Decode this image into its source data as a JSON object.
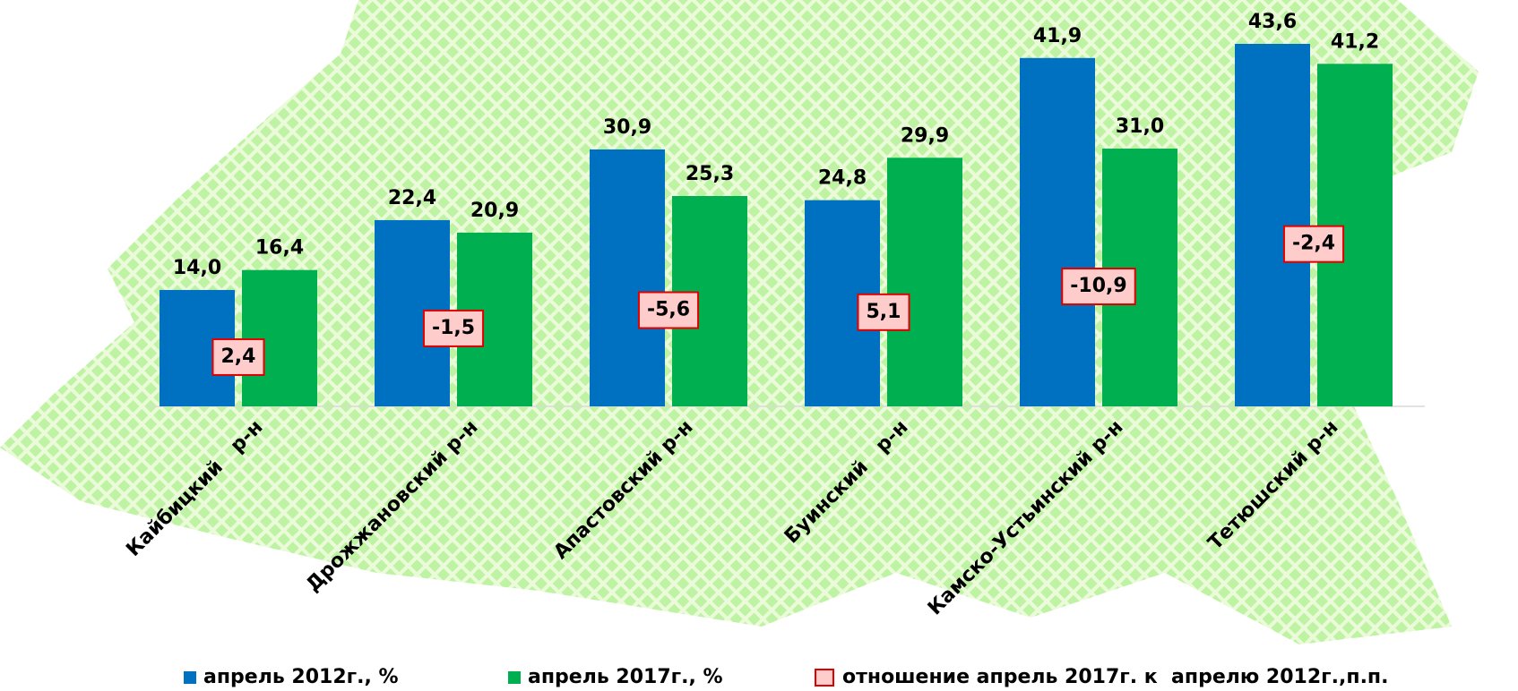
{
  "chart_data": {
    "type": "bar",
    "categories": [
      "Кайбицкий   р-н",
      "Дрожжановский р-н",
      "Апастовский р-н",
      "Буинский   р-н",
      "Камско-Устьинский р-н",
      "Тетюшский р-н"
    ],
    "ylim": [
      0,
      45
    ],
    "series": [
      {
        "name": "апрель 2012г., %",
        "color": "#0070c0",
        "values": [
          14.0,
          22.4,
          30.9,
          24.8,
          41.9,
          43.6
        ],
        "value_labels": [
          "14,0",
          "22,4",
          "30,9",
          "24,8",
          "41,9",
          "43,6"
        ]
      },
      {
        "name": "апрель 2017г., %",
        "color": "#00b050",
        "values": [
          16.4,
          20.9,
          25.3,
          29.9,
          31.0,
          41.2
        ],
        "value_labels": [
          "16,4",
          "20,9",
          "25,3",
          "29,9",
          "31,0",
          "41,2"
        ]
      },
      {
        "name": "отношение апрель 2017г. к  апрелю 2012г.,п.п.",
        "color": "#ffcccc",
        "border": "#e00000",
        "mark": "box",
        "values": [
          2.4,
          -1.5,
          -5.6,
          5.1,
          -10.9,
          -2.4
        ],
        "value_labels": [
          "2,4",
          "-1,5",
          "-5,6",
          "5,1",
          "-10,9",
          "-2,4"
        ]
      }
    ]
  }
}
